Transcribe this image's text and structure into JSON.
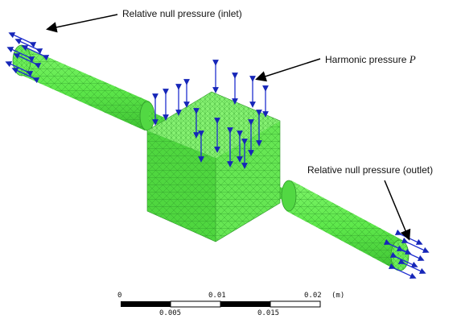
{
  "labels": {
    "inlet": "Relative null pressure (inlet)",
    "harmonic_prefix": "Harmonic pressure ",
    "harmonic_symbol": "P",
    "outlet": "Relative null pressure (outlet)"
  },
  "scale_bar": {
    "top_ticks": [
      "0",
      "0.01",
      "0.02"
    ],
    "bottom_ticks": [
      "0.005",
      "0.015"
    ],
    "unit": "(m)"
  },
  "colors": {
    "mesh_fill": "#5bea4a",
    "mesh_lines": "#2f9a2a",
    "arrow": "#1f2fd0",
    "arrow_tip": "#1626b8"
  }
}
